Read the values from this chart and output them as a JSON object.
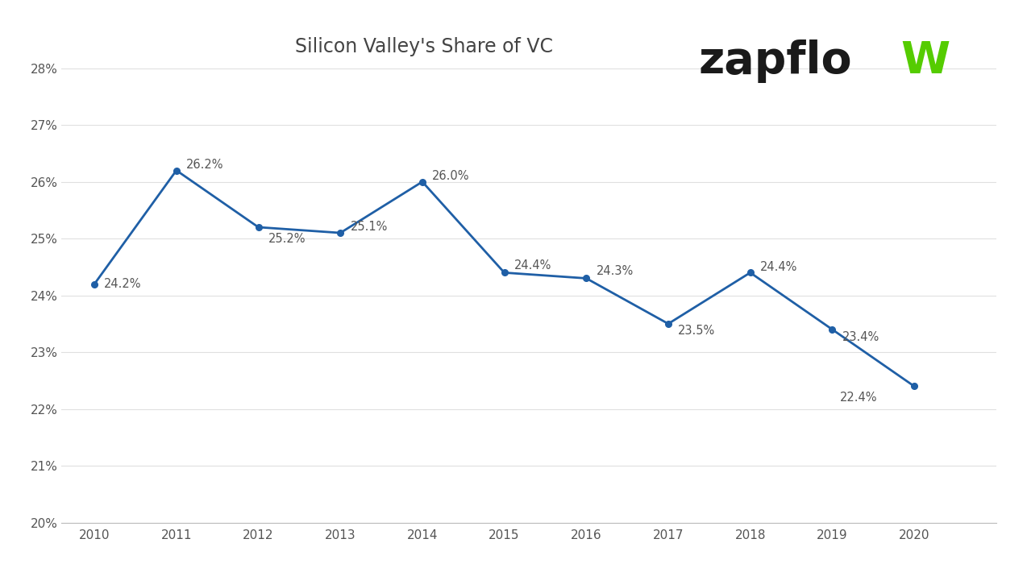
{
  "title": "Silicon Valley's Share of VC",
  "years": [
    2010,
    2011,
    2012,
    2013,
    2014,
    2015,
    2016,
    2017,
    2018,
    2019,
    2020
  ],
  "values": [
    24.2,
    26.2,
    25.2,
    25.1,
    26.0,
    24.4,
    24.3,
    23.5,
    24.4,
    23.4,
    22.4
  ],
  "labels": [
    "24.2%",
    "26.2%",
    "25.2%",
    "25.1%",
    "26.0%",
    "24.4%",
    "24.3%",
    "23.5%",
    "24.4%",
    "23.4%",
    "22.4%"
  ],
  "label_offsets_x": [
    0.12,
    0.12,
    0.12,
    0.12,
    0.12,
    0.12,
    0.12,
    0.12,
    0.12,
    0.12,
    -0.45
  ],
  "label_offsets_y": [
    0.0,
    0.1,
    -0.2,
    0.1,
    0.1,
    0.12,
    0.12,
    -0.12,
    0.1,
    -0.14,
    -0.2
  ],
  "line_color": "#1f5fa6",
  "marker_color": "#1f5fa6",
  "ylim": [
    20,
    28
  ],
  "yticks": [
    20,
    21,
    22,
    23,
    24,
    25,
    26,
    27,
    28
  ],
  "ytick_labels": [
    "20%",
    "21%",
    "22%",
    "23%",
    "24%",
    "25%",
    "26%",
    "27%",
    "28%"
  ],
  "background_color": "#ffffff",
  "title_fontsize": 17,
  "label_fontsize": 10.5,
  "tick_fontsize": 11,
  "label_color": "#555555",
  "tick_color": "#555555",
  "grid_color": "#e0e0e0",
  "spine_color": "#bbbbbb",
  "zapflo_color": "#1a1a1a",
  "zapflow_w_color": "#55cc00",
  "logo_fontsize": 40
}
